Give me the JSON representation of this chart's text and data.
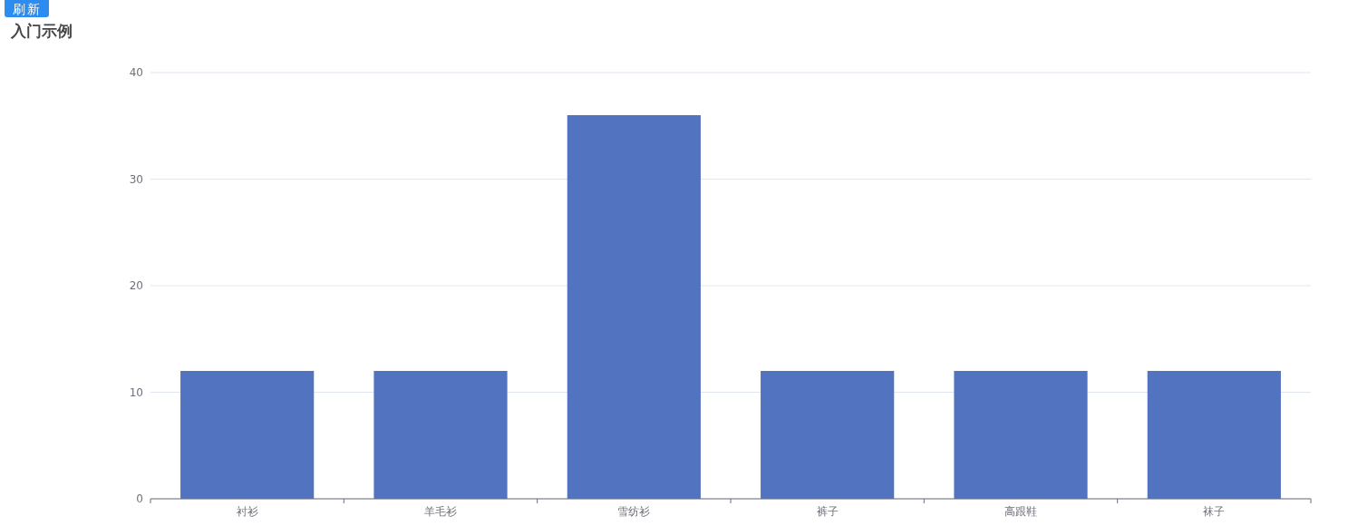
{
  "chart_data": {
    "type": "bar",
    "title": "入门示例",
    "annotations": [
      "刷新"
    ],
    "categories": [
      "衬衫",
      "羊毛衫",
      "雪纺衫",
      "裤子",
      "高跟鞋",
      "袜子"
    ],
    "values": [
      12,
      12,
      36,
      12,
      12,
      12
    ],
    "color": "#5273bf",
    "ylim": [
      0,
      40
    ],
    "yticks": [
      0,
      10,
      20,
      30,
      40
    ],
    "grid": "y"
  }
}
